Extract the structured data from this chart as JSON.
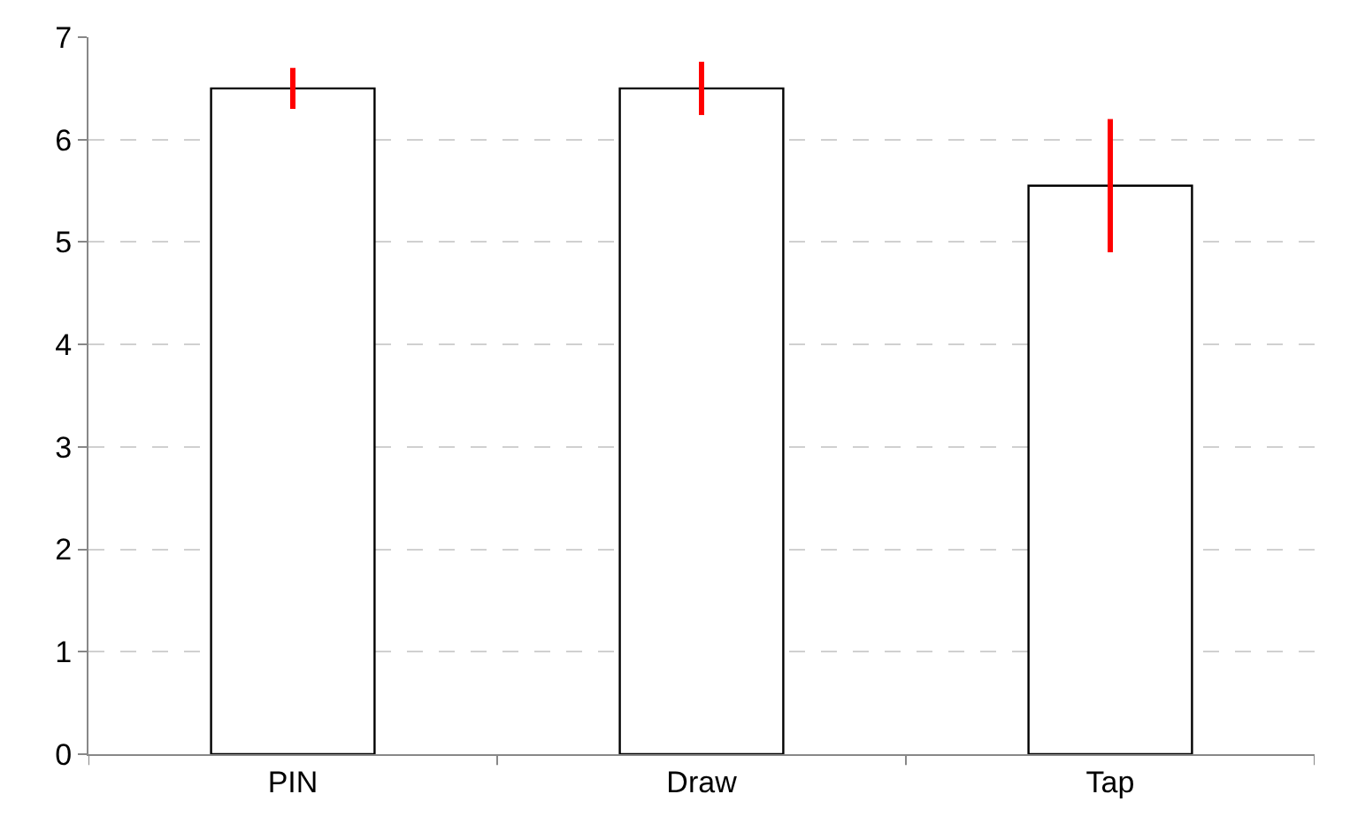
{
  "chart_data": {
    "type": "bar",
    "categories": [
      "PIN",
      "Draw",
      "Tap"
    ],
    "values": [
      6.5,
      6.5,
      5.55
    ],
    "errors": [
      0.2,
      0.26,
      0.65
    ],
    "color": "#ffffff",
    "ylim": [
      0,
      7
    ],
    "yticks": [
      0,
      1,
      2,
      3,
      4,
      5,
      6,
      7
    ],
    "grid": "y",
    "legend": false
  }
}
